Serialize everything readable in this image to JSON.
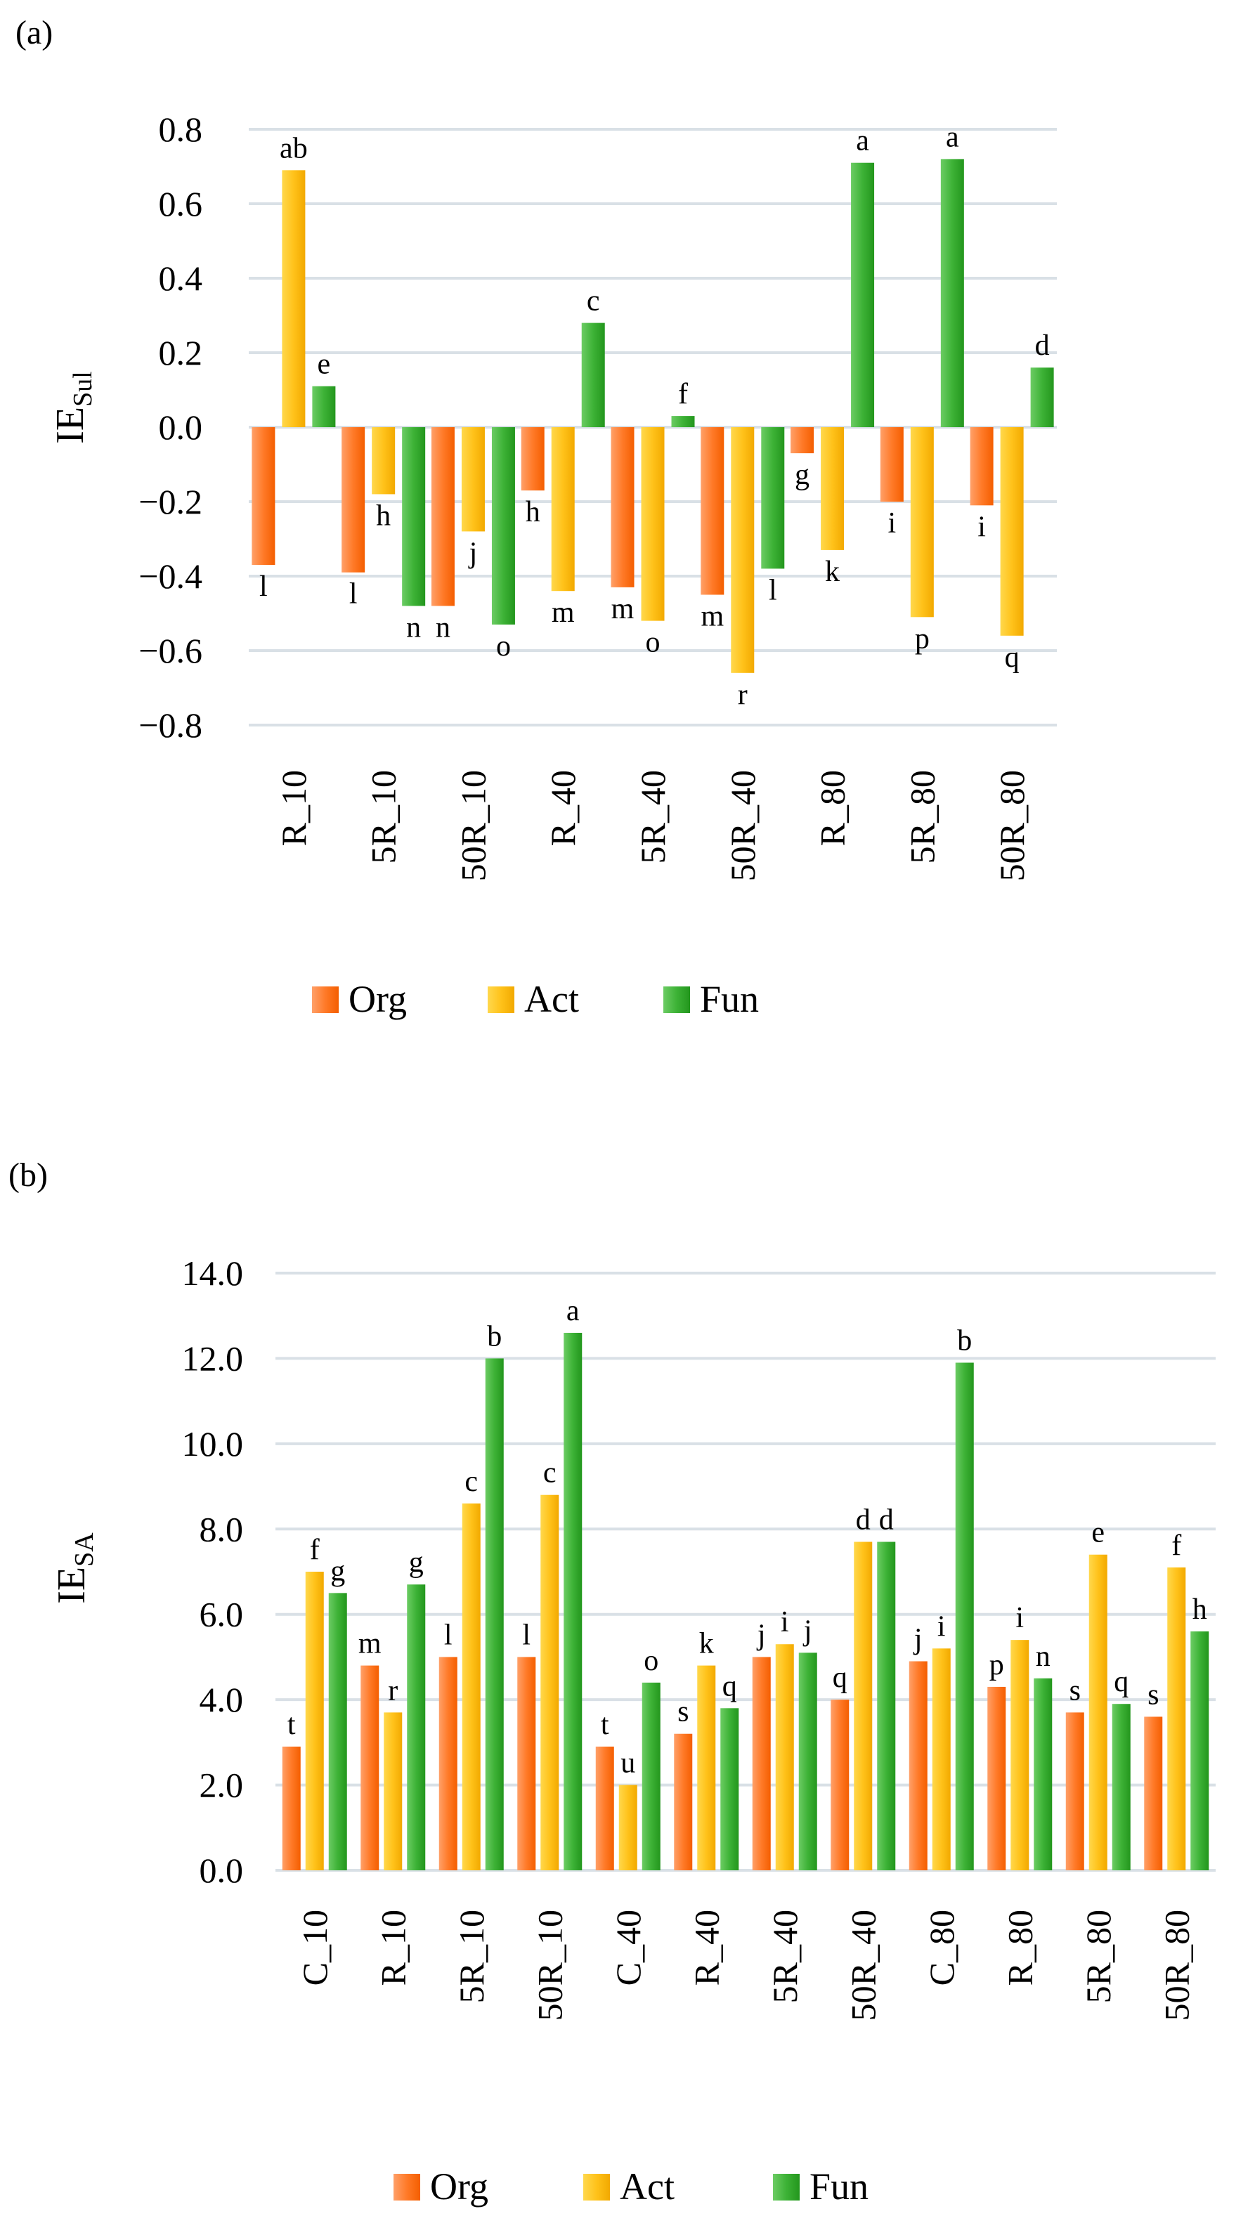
{
  "panels": {
    "a": {
      "label": "(a)"
    },
    "b": {
      "label": "(b)"
    }
  },
  "legend": [
    "Org",
    "Act",
    "Fun"
  ],
  "colors": {
    "Org": [
      "#ffa069",
      "#ff7a28",
      "#f45e00"
    ],
    "Act": [
      "#ffd84d",
      "#ffc21a",
      "#f2a900"
    ],
    "Fun": [
      "#6ccc64",
      "#3db236",
      "#23961d"
    ]
  },
  "chart_data": [
    {
      "type": "bar",
      "panel": "(a)",
      "ylabel": "IE",
      "ylabel_sub": "Sul",
      "ylim": [
        -0.8,
        0.8
      ],
      "yticks": [
        "0.8",
        "0.6",
        "0.4",
        "0.2",
        "0.0",
        "−0.2",
        "−0.4",
        "−0.6",
        "−0.8"
      ],
      "ytick_values": [
        0.8,
        0.6,
        0.4,
        0.2,
        0.0,
        -0.2,
        -0.4,
        -0.6,
        -0.8
      ],
      "grid": true,
      "legend_position": "bottom",
      "categories": [
        "R_10",
        "5R_10",
        "50R_10",
        "R_40",
        "5R_40",
        "50R_40",
        "R_80",
        "5R_80",
        "50R_80"
      ],
      "series": [
        {
          "name": "Org",
          "values": [
            -0.37,
            -0.39,
            -0.48,
            -0.17,
            -0.43,
            -0.45,
            -0.07,
            -0.2,
            -0.21
          ],
          "labels": [
            "l",
            "l",
            "n",
            "h",
            "m",
            "m",
            "g",
            "i",
            "i"
          ]
        },
        {
          "name": "Act",
          "values": [
            0.69,
            -0.18,
            -0.28,
            -0.44,
            -0.52,
            -0.66,
            -0.33,
            -0.51,
            -0.56
          ],
          "labels": [
            "ab",
            "h",
            "j",
            "m",
            "o",
            "r",
            "k",
            "p",
            "q"
          ]
        },
        {
          "name": "Fun",
          "values": [
            0.11,
            -0.48,
            -0.53,
            0.28,
            0.03,
            -0.38,
            0.71,
            0.72,
            0.16
          ],
          "labels": [
            "e",
            "n",
            "o",
            "c",
            "f",
            "l",
            "a",
            "a",
            "d"
          ]
        }
      ]
    },
    {
      "type": "bar",
      "panel": "(b)",
      "ylabel": "IE",
      "ylabel_sub": "SA",
      "ylim": [
        0,
        14
      ],
      "yticks": [
        "14.0",
        "12.0",
        "10.0",
        "8.0",
        "6.0",
        "4.0",
        "2.0",
        "0.0"
      ],
      "ytick_values": [
        14,
        12,
        10,
        8,
        6,
        4,
        2,
        0
      ],
      "grid": true,
      "legend_position": "bottom",
      "categories": [
        "C_10",
        "R_10",
        "5R_10",
        "50R_10",
        "C_40",
        "R_40",
        "5R_40",
        "50R_40",
        "C_80",
        "R_80",
        "5R_80",
        "50R_80"
      ],
      "series": [
        {
          "name": "Org",
          "values": [
            2.9,
            4.8,
            5.0,
            5.0,
            2.9,
            3.2,
            5.0,
            4.0,
            4.9,
            4.3,
            3.7,
            3.6
          ],
          "labels": [
            "t",
            "m",
            "l",
            "l",
            "t",
            "s",
            "j",
            "q",
            "j",
            "p",
            "s",
            "s"
          ]
        },
        {
          "name": "Act",
          "values": [
            7.0,
            3.7,
            8.6,
            8.8,
            2.0,
            4.8,
            5.3,
            7.7,
            5.2,
            5.4,
            7.4,
            7.1
          ],
          "labels": [
            "f",
            "r",
            "c",
            "c",
            "u",
            "k",
            "i",
            "d",
            "i",
            "i",
            "e",
            "f"
          ]
        },
        {
          "name": "Fun",
          "values": [
            6.5,
            6.7,
            12.0,
            12.6,
            4.4,
            3.8,
            5.1,
            7.7,
            11.9,
            4.5,
            3.9,
            5.6
          ],
          "labels": [
            "g",
            "g",
            "b",
            "a",
            "o",
            "q",
            "j",
            "d",
            "b",
            "n",
            "q",
            "h"
          ]
        }
      ]
    }
  ]
}
